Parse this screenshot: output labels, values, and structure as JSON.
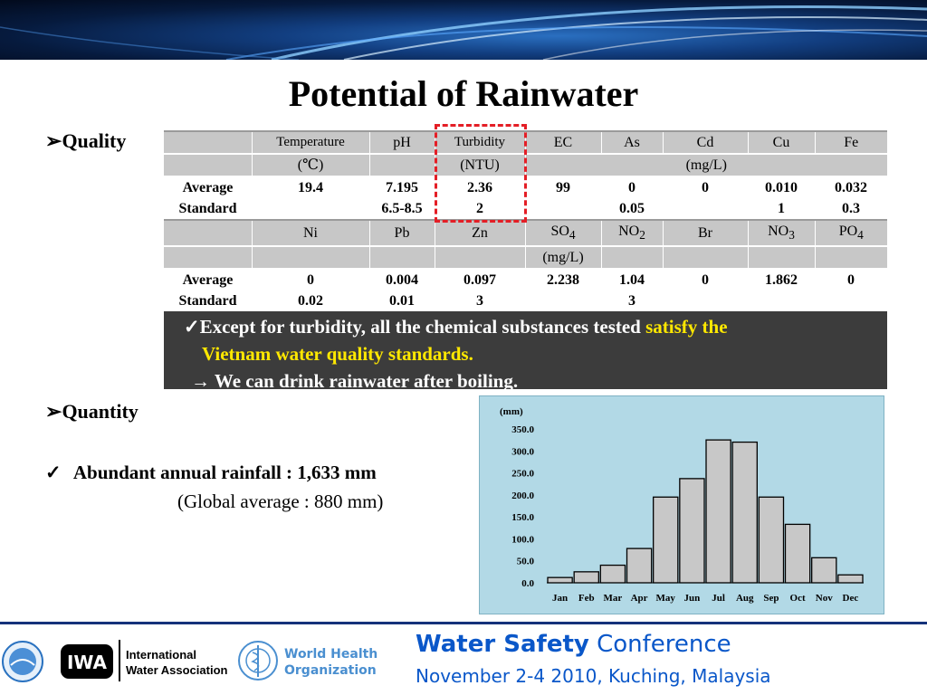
{
  "slide": {
    "title": "Potential of Rainwater"
  },
  "quality": {
    "label": "Quality",
    "table": {
      "row1": {
        "headers": [
          "",
          "Temperature",
          "pH",
          "Turbidity",
          "EC",
          "As",
          "Cd",
          "Cu",
          "Fe"
        ]
      },
      "row1_units": {
        "temp": "(℃)",
        "turbidity": "(NTU)",
        "mgl": "(mg/L)"
      },
      "row1_average": [
        "Average",
        "19.4",
        "7.195",
        "2.36",
        "99",
        "0",
        "0",
        "0.010",
        "0.032"
      ],
      "row1_standard": [
        "Standard",
        "",
        "6.5-8.5",
        "2",
        "",
        "0.05",
        "",
        "1",
        "0.3"
      ],
      "row2": {
        "headers": [
          "",
          "Ni",
          "Pb",
          "Zn",
          "SO",
          "NO",
          "Br",
          "NO",
          "PO"
        ],
        "subs": [
          "",
          "",
          "",
          "",
          "4",
          "2",
          "",
          "3",
          "4"
        ]
      },
      "row2_units": {
        "mgl": "(mg/L)"
      },
      "row2_average": [
        "Average",
        "0",
        "0.004",
        "0.097",
        "2.238",
        "1.04",
        "0",
        "1.862",
        "0"
      ],
      "row2_standard": [
        "Standard",
        "0.02",
        "0.01",
        "3",
        "",
        "3",
        "",
        "",
        ""
      ]
    },
    "note": {
      "check": "✓",
      "line1_a": "Except for turbidity, all the chemical substances tested ",
      "line1_b": "satisfy the",
      "line2": "Vietnam water quality standards.",
      "line3": "→ We can drink rainwater after boiling."
    }
  },
  "quantity": {
    "label": "Quantity",
    "check": "✓",
    "rainfall": "Abundant annual rainfall : 1,633 mm",
    "global": "(Global average : 880 mm)"
  },
  "chart_data": {
    "type": "bar",
    "unit_label": "(mm)",
    "categories": [
      "Jan",
      "Feb",
      "Mar",
      "Apr",
      "May",
      "Jun",
      "Jul",
      "Aug",
      "Sep",
      "Oct",
      "Nov",
      "Dec"
    ],
    "values": [
      12,
      25,
      40,
      78,
      195,
      237,
      325,
      320,
      195,
      133,
      57,
      18
    ],
    "ylim": [
      0,
      350
    ],
    "yticks": [
      "0.0",
      "50.0",
      "100.0",
      "150.0",
      "200.0",
      "250.0",
      "300.0",
      "350.0"
    ],
    "bar_color": "#c8c8c8",
    "background": "#b2d9e6"
  },
  "footer": {
    "iwa_name_1": "International",
    "iwa_name_2": "Water Association",
    "who_name_1": "World Health",
    "who_name_2": "Organization",
    "conf_bold": "Water Safety",
    "conf_rest": " Conference",
    "conf_date": "November 2-4 2010, Kuching, Malaysia"
  }
}
